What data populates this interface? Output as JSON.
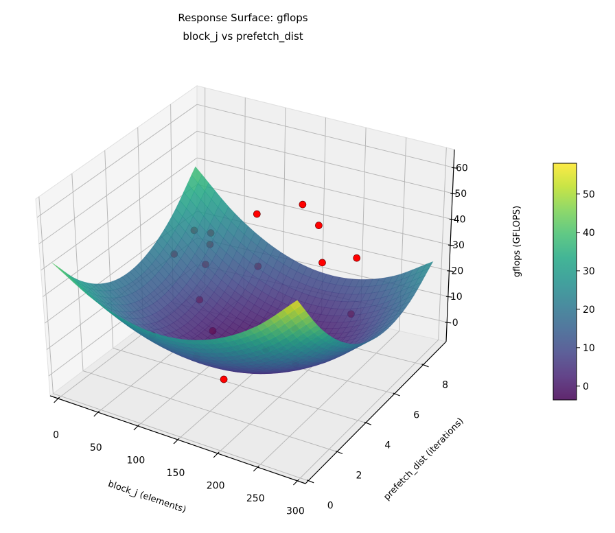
{
  "chart_data": {
    "type": "surface3d",
    "title": "Response Surface: gflops",
    "subtitle": "block_j vs prefetch_dist",
    "xlabel": "block_j (elements)",
    "ylabel": "prefetch_dist (iterations)",
    "zlabel": "gflops (GFLOPS)",
    "xlim": [
      -10,
      310
    ],
    "ylim": [
      -0.2,
      9.6
    ],
    "zlim": [
      -7.5,
      67
    ],
    "xticks": [
      0,
      50,
      100,
      150,
      200,
      250,
      300
    ],
    "yticks": [
      0,
      2,
      4,
      6,
      8
    ],
    "zticks": [
      0,
      10,
      20,
      30,
      40,
      50,
      60
    ],
    "grid": true,
    "surface": {
      "colormap": "viridis",
      "alpha": 0.85,
      "x": [
        0,
        50,
        100,
        150,
        200,
        250,
        300
      ],
      "y": [
        0,
        1.5,
        3,
        4.5,
        6,
        7.5,
        9
      ],
      "z": [
        [
          43.0,
          33.7,
          29.0,
          29.0,
          33.7,
          43.0,
          57.0
        ],
        [
          30.0,
          19.9,
          14.4,
          13.7,
          17.6,
          26.1,
          39.3
        ],
        [
          22.0,
          11.1,
          4.9,
          3.3,
          6.4,
          14.2,
          26.7
        ],
        [
          19.0,
          7.3,
          0.3,
          -2.0,
          0.3,
          7.3,
          19.0
        ],
        [
          21.0,
          8.6,
          0.8,
          -2.3,
          -0.8,
          5.4,
          16.3
        ],
        [
          28.0,
          14.8,
          6.2,
          2.3,
          3.1,
          8.6,
          18.7
        ],
        [
          40.0,
          26.0,
          16.7,
          12.0,
          12.0,
          16.7,
          26.0
        ]
      ]
    },
    "points": {
      "color": "#ff0000",
      "edgecolor": "#6b0000",
      "data": [
        [
          136,
          3.7,
          -5
        ],
        [
          188,
          5.8,
          -5
        ],
        [
          100,
          3.8,
          0
        ],
        [
          158,
          5.4,
          0
        ],
        [
          217,
          8.0,
          5
        ],
        [
          204,
          6.7,
          30
        ],
        [
          232,
          7.5,
          30
        ],
        [
          203,
          6.5,
          45
        ],
        [
          179,
          6.7,
          50
        ],
        [
          132,
          6.2,
          45
        ],
        [
          12,
          8.3,
          20
        ],
        [
          31,
          8.4,
          20
        ],
        [
          28,
          8.5,
          15
        ],
        [
          6,
          7.3,
          15
        ],
        [
          32,
          8.0,
          10
        ],
        [
          85,
          8.7,
          10
        ],
        [
          53,
          6.5,
          5
        ],
        [
          35,
          4.3,
          0
        ],
        [
          77,
          6.1,
          -3
        ],
        [
          163,
          7.1,
          0
        ]
      ]
    },
    "colorbar": {
      "range": [
        -3.6,
        58
      ],
      "ticks": [
        0,
        10,
        20,
        30,
        40,
        50
      ]
    }
  }
}
